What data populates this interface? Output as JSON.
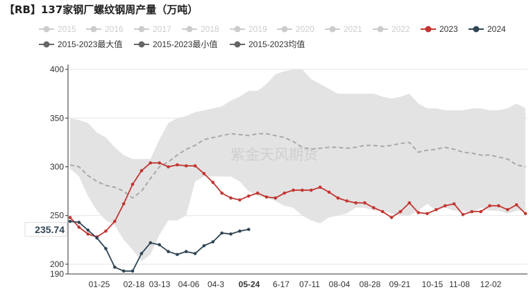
{
  "title": "【RB】137家钢厂螺纹钢周产量（万吨）",
  "watermark": "紫金天风期货",
  "colors": {
    "band": "#e3e3e3",
    "avg": "#a8a8a8",
    "s2023": "#c23531",
    "s2024": "#2f4554",
    "legend_off": "#cccccc",
    "legend_stat": "#666666"
  },
  "legend": {
    "years": [
      "2015",
      "2016",
      "2017",
      "2018",
      "2019",
      "2020",
      "2021",
      "2022",
      "2023",
      "2024"
    ],
    "stats": [
      "2015-2023最大值",
      "2015-2023最小值",
      "2015-2023均值"
    ]
  },
  "chart_data": {
    "type": "line",
    "x_ticks": [
      "01-25",
      "02-18",
      "03-13",
      "04-06",
      "04-3",
      "05-24",
      "6-17",
      "07-11",
      "08-04",
      "08-28",
      "09-21",
      "10-15",
      "11-08",
      "12-02"
    ],
    "highlight_tick": "05-24",
    "ylim": [
      190,
      405
    ],
    "y_ticks": [
      190,
      200,
      250,
      300,
      350,
      400
    ],
    "current_value_label": "235.74",
    "series": [
      {
        "name": "2015-2023最大值",
        "values": [
          350,
          348,
          345,
          335,
          330,
          320,
          312,
          308,
          308,
          308,
          328,
          345,
          350,
          352,
          356,
          358,
          360,
          362,
          368,
          372,
          378,
          378,
          385,
          395,
          398,
          400,
          400,
          390,
          385,
          380,
          375,
          375,
          375,
          375,
          375,
          372,
          370,
          372,
          375,
          365,
          360,
          360,
          358,
          358,
          358,
          360,
          360,
          358,
          358,
          360,
          365,
          360
        ]
      },
      {
        "name": "2015-2023最小值",
        "values": [
          298,
          290,
          270,
          255,
          245,
          240,
          225,
          215,
          203,
          210,
          230,
          245,
          245,
          250,
          285,
          290,
          290,
          290,
          290,
          285,
          275,
          270,
          268,
          265,
          260,
          258,
          250,
          245,
          242,
          248,
          250,
          252,
          258,
          258,
          255,
          255,
          252,
          250,
          250,
          255,
          262,
          255,
          258,
          255,
          255,
          252,
          258,
          255,
          255,
          252,
          255,
          255
        ]
      },
      {
        "name": "2015-2023均值",
        "values": [
          302,
          300,
          291,
          285,
          281,
          279,
          275,
          268,
          275,
          288,
          300,
          305,
          312,
          318,
          322,
          328,
          330,
          332,
          334,
          333,
          332,
          334,
          334,
          332,
          330,
          326,
          320,
          318,
          319,
          320,
          320,
          319,
          320,
          322,
          322,
          321,
          322,
          324,
          325,
          315,
          317,
          318,
          320,
          318,
          315,
          314,
          312,
          312,
          310,
          308,
          302,
          300
        ]
      },
      {
        "name": "2023",
        "values": [
          248,
          238,
          231,
          228,
          234,
          244,
          262,
          282,
          296,
          304,
          304,
          300,
          302,
          301,
          301,
          293,
          284,
          273,
          268,
          266,
          270,
          273,
          269,
          268,
          273,
          276,
          276,
          276,
          279,
          274,
          268,
          265,
          263,
          263,
          258,
          254,
          248,
          254,
          263,
          253,
          252,
          256,
          260,
          262,
          251,
          254,
          254,
          260,
          260,
          256,
          261,
          252
        ]
      },
      {
        "name": "2024",
        "values": [
          244,
          243,
          235,
          227,
          216,
          197,
          193,
          193,
          211,
          222,
          220,
          213,
          210,
          213,
          211,
          219,
          223,
          232,
          231,
          234,
          235.74
        ]
      }
    ]
  }
}
